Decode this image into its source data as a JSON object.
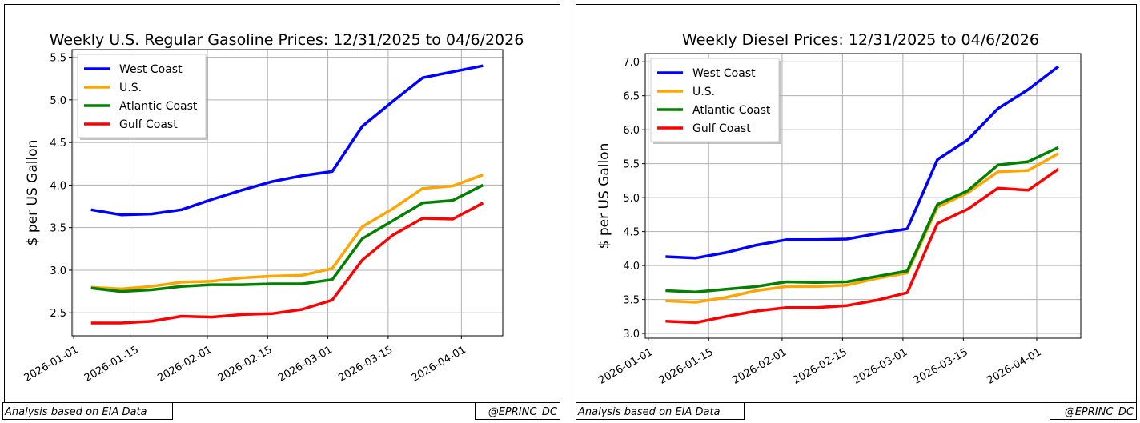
{
  "chart_data": [
    {
      "type": "line",
      "title": "Weekly U.S. Regular Gasoline Prices: 12/31/2025 to 04/6/2026",
      "xlabel": "",
      "ylabel": "$ per US Gallon",
      "x": [
        "2026-01-05",
        "2026-01-12",
        "2026-01-19",
        "2026-01-26",
        "2026-02-02",
        "2026-02-09",
        "2026-02-16",
        "2026-02-23",
        "2026-03-02",
        "2026-03-09",
        "2026-03-16",
        "2026-03-23",
        "2026-03-30",
        "2026-04-06"
      ],
      "xticks": [
        "2026-01-01",
        "2026-01-15",
        "2026-02-01",
        "2026-02-15",
        "2026-03-01",
        "2026-03-15",
        "2026-04-01"
      ],
      "yticks": [
        "2.5",
        "3.0",
        "3.5",
        "4.0",
        "4.5",
        "5.0",
        "5.5"
      ],
      "ylim": [
        2.23,
        5.59
      ],
      "xlim_days_from_jan1": [
        -0.4,
        99.6
      ],
      "grid": true,
      "legend": "top-left",
      "series": [
        {
          "name": "West Coast",
          "color": "#0000ff",
          "values": [
            3.71,
            3.65,
            3.66,
            3.71,
            3.83,
            3.94,
            4.04,
            4.11,
            4.16,
            4.69,
            4.98,
            5.26,
            5.33,
            5.4
          ]
        },
        {
          "name": "U.S.",
          "color": "#ffa500",
          "values": [
            2.8,
            2.78,
            2.81,
            2.86,
            2.87,
            2.91,
            2.93,
            2.94,
            3.02,
            3.51,
            3.72,
            3.96,
            3.99,
            4.12
          ]
        },
        {
          "name": "Atlantic Coast",
          "color": "#008000",
          "values": [
            2.79,
            2.75,
            2.77,
            2.81,
            2.83,
            2.83,
            2.84,
            2.84,
            2.89,
            3.37,
            3.58,
            3.79,
            3.82,
            4.0
          ]
        },
        {
          "name": "Gulf Coast",
          "color": "#ff0000",
          "values": [
            2.38,
            2.38,
            2.4,
            2.46,
            2.45,
            2.48,
            2.49,
            2.54,
            2.65,
            3.12,
            3.41,
            3.61,
            3.6,
            3.79
          ]
        }
      ],
      "footer_left": "Analysis based on EIA Data",
      "footer_right": "@EPRINC_DC"
    },
    {
      "type": "line",
      "title": "Weekly Diesel Prices: 12/31/2025 to 04/6/2026",
      "xlabel": "",
      "ylabel": "$ per US Gallon",
      "x": [
        "2026-01-05",
        "2026-01-12",
        "2026-01-19",
        "2026-01-26",
        "2026-02-02",
        "2026-02-09",
        "2026-02-16",
        "2026-02-23",
        "2026-03-02",
        "2026-03-09",
        "2026-03-16",
        "2026-03-23",
        "2026-03-30",
        "2026-04-06"
      ],
      "xticks": [
        "2026-01-01",
        "2026-01-15",
        "2026-02-01",
        "2026-02-15",
        "2026-03-01",
        "2026-03-15",
        "2026-04-01"
      ],
      "yticks": [
        "3.0",
        "3.5",
        "4.0",
        "4.5",
        "5.0",
        "5.5",
        "6.0",
        "6.5",
        "7.0"
      ],
      "ylim": [
        2.93,
        7.12
      ],
      "xlim_days_from_jan1": [
        -0.7,
        100.2
      ],
      "grid": true,
      "legend": "top-left",
      "series": [
        {
          "name": "West Coast",
          "color": "#0000ff",
          "values": [
            4.13,
            4.11,
            4.19,
            4.3,
            4.38,
            4.38,
            4.39,
            4.47,
            4.54,
            5.56,
            5.85,
            6.31,
            6.59,
            6.93
          ]
        },
        {
          "name": "U.S.",
          "color": "#ffa500",
          "values": [
            3.48,
            3.46,
            3.53,
            3.63,
            3.69,
            3.69,
            3.71,
            3.81,
            3.89,
            4.86,
            5.07,
            5.38,
            5.4,
            5.65
          ]
        },
        {
          "name": "Atlantic Coast",
          "color": "#008000",
          "values": [
            3.63,
            3.61,
            3.65,
            3.69,
            3.76,
            3.75,
            3.76,
            3.84,
            3.92,
            4.9,
            5.1,
            5.48,
            5.53,
            5.74
          ]
        },
        {
          "name": "Gulf Coast",
          "color": "#ff0000",
          "values": [
            3.18,
            3.16,
            3.25,
            3.33,
            3.38,
            3.38,
            3.41,
            3.49,
            3.6,
            4.62,
            4.83,
            5.14,
            5.11,
            5.42
          ]
        }
      ],
      "footer_left": "Analysis based on EIA Data",
      "footer_right": "@EPRINC_DC"
    }
  ]
}
